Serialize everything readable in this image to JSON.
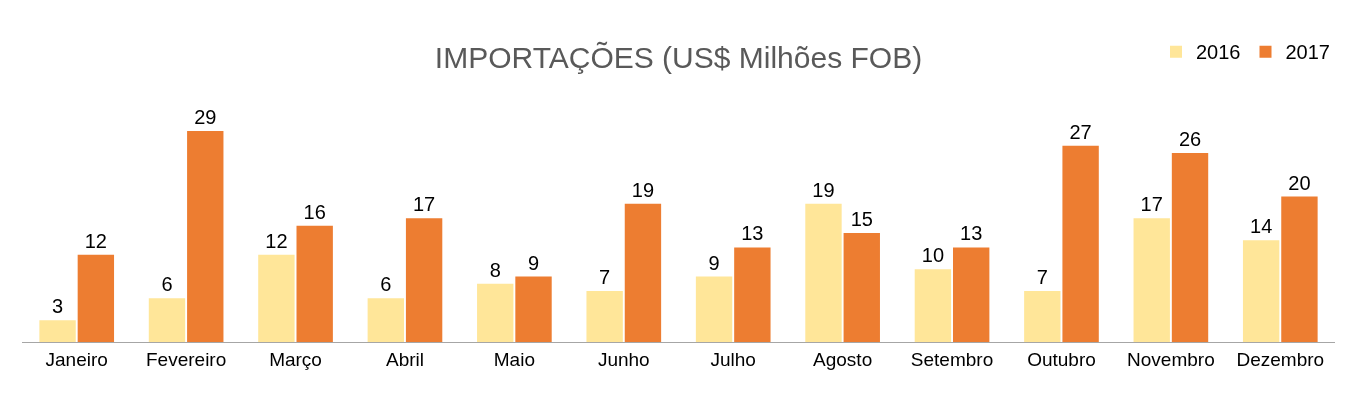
{
  "chart_data": {
    "type": "bar",
    "title": "IMPORTAÇÕES (US$ Milhões FOB)",
    "categories": [
      "Janeiro",
      "Fevereiro",
      "Março",
      "Abril",
      "Maio",
      "Junho",
      "Julho",
      "Agosto",
      "Setembro",
      "Outubro",
      "Novembro",
      "Dezembro"
    ],
    "series": [
      {
        "name": "2016",
        "color": "#ffe699",
        "values": [
          3,
          6,
          12,
          6,
          8,
          7,
          9,
          19,
          10,
          7,
          17,
          14
        ]
      },
      {
        "name": "2017",
        "color": "#ed7d31",
        "values": [
          12,
          29,
          16,
          17,
          9,
          19,
          13,
          15,
          13,
          27,
          26,
          20
        ]
      }
    ],
    "data_labels": true,
    "legend": "top right",
    "tick_labels": "x"
  }
}
